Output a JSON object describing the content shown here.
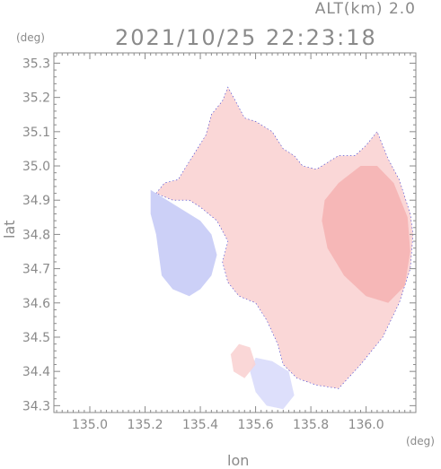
{
  "chart_data": {
    "type": "heatmap",
    "header": {
      "altitude": "ALT(km) 2.0",
      "timestamp": "2021/10/25 22:23:18"
    },
    "xlabel": "lon",
    "ylabel": "lat",
    "xunit": "(deg)",
    "yunit": "(deg)",
    "xlim": [
      134.87,
      136.18
    ],
    "ylim": [
      34.28,
      35.33
    ],
    "xticks": [
      135.0,
      135.2,
      135.4,
      135.6,
      135.8,
      136.0
    ],
    "xtick_labels": [
      "135.0",
      "135.2",
      "135.4",
      "135.6",
      "135.8",
      "136.0"
    ],
    "yticks": [
      34.3,
      34.4,
      34.5,
      34.6,
      34.7,
      34.8,
      34.9,
      35.0,
      35.1,
      35.2,
      35.3
    ],
    "ytick_labels": [
      "34.3",
      "34.4",
      "34.5",
      "34.6",
      "34.7",
      "34.8",
      "34.9",
      "35.0",
      "35.1",
      "35.2",
      "35.3"
    ],
    "grid": false,
    "colors": {
      "positive": "#f9d3d3",
      "positive_strong": "#f5b4b4",
      "negative": "#d9dcfb",
      "negative_strong": "#c6cbf6",
      "axis": "#8a8a8a",
      "edge": "#3a3ad0"
    },
    "regions": [
      {
        "sign": "positive",
        "intensity": 0.5,
        "lonlat": [
          [
            135.24,
            34.92
          ],
          [
            135.27,
            34.95
          ],
          [
            135.32,
            34.96
          ],
          [
            135.35,
            35.0
          ],
          [
            135.42,
            35.09
          ],
          [
            135.44,
            35.15
          ],
          [
            135.48,
            35.19
          ],
          [
            135.5,
            35.23
          ],
          [
            135.52,
            35.2
          ],
          [
            135.56,
            35.14
          ],
          [
            135.6,
            35.13
          ],
          [
            135.66,
            35.1
          ],
          [
            135.7,
            35.05
          ],
          [
            135.74,
            35.03
          ],
          [
            135.77,
            35.0
          ],
          [
            135.82,
            34.99
          ],
          [
            135.86,
            35.01
          ],
          [
            135.9,
            35.03
          ],
          [
            135.96,
            35.03
          ],
          [
            136.0,
            35.06
          ],
          [
            136.04,
            35.1
          ],
          [
            136.08,
            35.02
          ],
          [
            136.12,
            34.96
          ],
          [
            136.16,
            34.86
          ],
          [
            136.17,
            34.8
          ],
          [
            136.16,
            34.7
          ],
          [
            136.12,
            34.6
          ],
          [
            136.06,
            34.5
          ],
          [
            135.98,
            34.42
          ],
          [
            135.9,
            34.35
          ],
          [
            135.82,
            34.36
          ],
          [
            135.75,
            34.38
          ],
          [
            135.7,
            34.42
          ],
          [
            135.68,
            34.48
          ],
          [
            135.64,
            34.55
          ],
          [
            135.6,
            34.6
          ],
          [
            135.54,
            34.62
          ],
          [
            135.5,
            34.66
          ],
          [
            135.48,
            34.72
          ],
          [
            135.5,
            34.78
          ],
          [
            135.46,
            34.84
          ],
          [
            135.4,
            34.88
          ],
          [
            135.36,
            34.9
          ],
          [
            135.3,
            34.9
          ]
        ]
      },
      {
        "sign": "positive",
        "intensity": 0.9,
        "lonlat": [
          [
            135.85,
            34.9
          ],
          [
            135.9,
            34.95
          ],
          [
            135.98,
            35.0
          ],
          [
            136.04,
            35.0
          ],
          [
            136.1,
            34.95
          ],
          [
            136.15,
            34.85
          ],
          [
            136.16,
            34.75
          ],
          [
            136.14,
            34.65
          ],
          [
            136.08,
            34.6
          ],
          [
            136.0,
            34.62
          ],
          [
            135.92,
            34.68
          ],
          [
            135.86,
            34.76
          ],
          [
            135.84,
            34.84
          ]
        ]
      },
      {
        "sign": "negative",
        "intensity": 0.7,
        "lonlat": [
          [
            135.22,
            34.93
          ],
          [
            135.28,
            34.9
          ],
          [
            135.34,
            34.87
          ],
          [
            135.4,
            34.84
          ],
          [
            135.44,
            34.8
          ],
          [
            135.46,
            34.74
          ],
          [
            135.44,
            34.68
          ],
          [
            135.4,
            34.64
          ],
          [
            135.36,
            34.62
          ],
          [
            135.3,
            34.64
          ],
          [
            135.26,
            34.68
          ],
          [
            135.25,
            34.74
          ],
          [
            135.24,
            34.8
          ],
          [
            135.22,
            34.86
          ]
        ]
      },
      {
        "sign": "negative",
        "intensity": 0.5,
        "lonlat": [
          [
            135.6,
            34.44
          ],
          [
            135.66,
            34.43
          ],
          [
            135.72,
            34.4
          ],
          [
            135.74,
            34.33
          ],
          [
            135.7,
            34.29
          ],
          [
            135.64,
            34.3
          ],
          [
            135.6,
            34.34
          ],
          [
            135.58,
            34.4
          ]
        ]
      },
      {
        "sign": "positive",
        "intensity": 0.3,
        "lonlat": [
          [
            135.52,
            34.4
          ],
          [
            135.56,
            34.38
          ],
          [
            135.6,
            34.42
          ],
          [
            135.58,
            34.47
          ],
          [
            135.54,
            34.48
          ],
          [
            135.51,
            34.45
          ]
        ]
      }
    ]
  }
}
